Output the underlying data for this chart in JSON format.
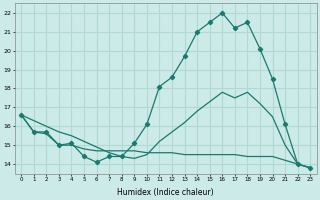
{
  "xlabel": "Humidex (Indice chaleur)",
  "bg_color": "#cceae7",
  "grid_color": "#b0d8d4",
  "line_color": "#1a7a6e",
  "hours": [
    0,
    1,
    2,
    3,
    4,
    5,
    6,
    7,
    8,
    9,
    10,
    11,
    12,
    13,
    14,
    15,
    16,
    17,
    18,
    19,
    20,
    21,
    22,
    23
  ],
  "series_curve": [
    16.6,
    15.7,
    15.7,
    15.0,
    15.1,
    14.4,
    14.1,
    14.4,
    14.4,
    15.1,
    16.1,
    18.1,
    18.6,
    19.7,
    21.0,
    21.5,
    22.0,
    21.2,
    21.5,
    20.1,
    18.5,
    16.1,
    14.0,
    13.8
  ],
  "series_flat": [
    16.6,
    15.7,
    15.6,
    15.0,
    15.0,
    14.8,
    14.7,
    14.7,
    14.7,
    14.7,
    14.6,
    14.6,
    14.6,
    14.5,
    14.5,
    14.5,
    14.5,
    14.5,
    14.4,
    14.4,
    14.4,
    14.2,
    14.0,
    13.8
  ],
  "series_diag": [
    16.6,
    16.3,
    16.0,
    15.7,
    15.5,
    15.2,
    14.9,
    14.6,
    14.4,
    14.3,
    14.5,
    15.2,
    15.7,
    16.2,
    16.8,
    17.3,
    17.8,
    17.5,
    17.8,
    17.2,
    16.5,
    15.0,
    14.0,
    13.8
  ],
  "ylim": [
    13.5,
    22.5
  ],
  "yticks": [
    14,
    15,
    16,
    17,
    18,
    19,
    20,
    21,
    22
  ],
  "xlim": [
    -0.5,
    23.5
  ],
  "markersize": 2.2
}
